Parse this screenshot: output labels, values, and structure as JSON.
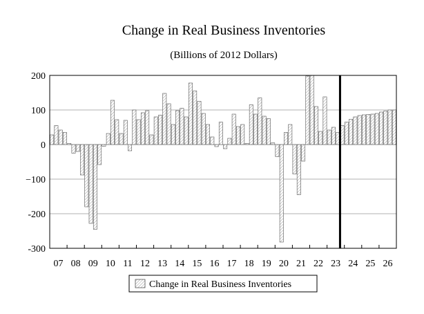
{
  "chart_data": {
    "type": "bar",
    "title": "Change in Real Business Inventories",
    "subtitle": "(Billions of 2012 Dollars)",
    "xlabel": "",
    "ylabel": "",
    "ylim": [
      -300,
      200
    ],
    "yticks": [
      200,
      100,
      0,
      -100,
      -200,
      -300
    ],
    "ytick_labels": [
      "200",
      "100",
      "0",
      "−100",
      "-200",
      "-300"
    ],
    "xtick_labels": [
      "07",
      "08",
      "09",
      "10",
      "11",
      "12",
      "13",
      "14",
      "15",
      "16",
      "17",
      "18",
      "19",
      "20",
      "21",
      "22",
      "23",
      "24",
      "25",
      "26"
    ],
    "grid": true,
    "legend": {
      "position": "bottom-center",
      "entries": [
        "Change in Real Business Inventories"
      ]
    },
    "annotations": [
      "vertical line marking start of forecast period (2023 Q4)"
    ],
    "forecast_start_index": 67,
    "categories": [
      "2007Q1",
      "2007Q2",
      "2007Q3",
      "2007Q4",
      "2008Q1",
      "2008Q2",
      "2008Q3",
      "2008Q4",
      "2009Q1",
      "2009Q2",
      "2009Q3",
      "2009Q4",
      "2010Q1",
      "2010Q2",
      "2010Q3",
      "2010Q4",
      "2011Q1",
      "2011Q2",
      "2011Q3",
      "2011Q4",
      "2012Q1",
      "2012Q2",
      "2012Q3",
      "2012Q4",
      "2013Q1",
      "2013Q2",
      "2013Q3",
      "2013Q4",
      "2014Q1",
      "2014Q2",
      "2014Q3",
      "2014Q4",
      "2015Q1",
      "2015Q2",
      "2015Q3",
      "2015Q4",
      "2016Q1",
      "2016Q2",
      "2016Q3",
      "2016Q4",
      "2017Q1",
      "2017Q2",
      "2017Q3",
      "2017Q4",
      "2018Q1",
      "2018Q2",
      "2018Q3",
      "2018Q4",
      "2019Q1",
      "2019Q2",
      "2019Q3",
      "2019Q4",
      "2020Q1",
      "2020Q2",
      "2020Q3",
      "2020Q4",
      "2021Q1",
      "2021Q2",
      "2021Q3",
      "2021Q4",
      "2022Q1",
      "2022Q2",
      "2022Q3",
      "2022Q4",
      "2023Q1",
      "2023Q2",
      "2023Q3",
      "2023Q4",
      "2024Q1",
      "2024Q2",
      "2024Q3",
      "2024Q4",
      "2025Q1",
      "2025Q2",
      "2025Q3",
      "2025Q4",
      "2026Q1",
      "2026Q2",
      "2026Q3",
      "2026Q4"
    ],
    "series": [
      {
        "name": "Change in Real Business Inventories",
        "values": [
          28,
          55,
          42,
          35,
          3,
          -25,
          -20,
          -88,
          -180,
          -228,
          -245,
          -58,
          -5,
          32,
          128,
          72,
          32,
          70,
          -18,
          100,
          72,
          92,
          98,
          28,
          80,
          85,
          148,
          118,
          58,
          98,
          105,
          80,
          178,
          155,
          125,
          90,
          58,
          22,
          -6,
          65,
          -12,
          18,
          88,
          52,
          58,
          3,
          115,
          88,
          135,
          82,
          75,
          5,
          -35,
          -282,
          35,
          58,
          -85,
          -145,
          -48,
          198,
          200,
          110,
          38,
          138,
          42,
          50,
          35,
          55,
          65,
          73,
          80,
          84,
          86,
          87,
          88,
          90,
          94,
          97,
          100,
          100
        ]
      }
    ]
  }
}
